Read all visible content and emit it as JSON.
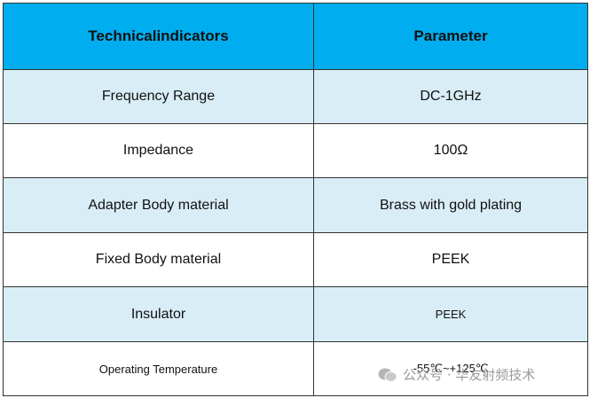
{
  "table": {
    "header": [
      "Technicalindicators",
      "Parameter"
    ],
    "rows": [
      [
        "Frequency Range",
        "DC-1GHz"
      ],
      [
        "Impedance",
        "100Ω"
      ],
      [
        "Adapter Body material",
        "Brass with gold plating"
      ],
      [
        "Fixed Body material",
        "PEEK"
      ],
      [
        "Insulator",
        "PEEK"
      ],
      [
        "Operating Temperature",
        "-55℃~+125℃"
      ]
    ]
  },
  "watermark": "公众号 · 华友射频技术"
}
